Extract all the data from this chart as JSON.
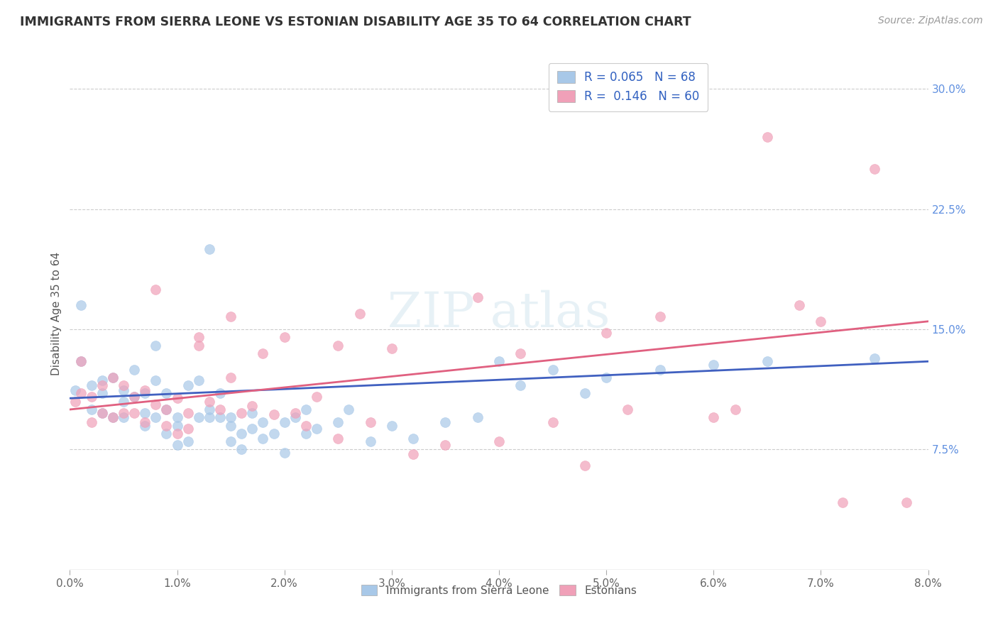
{
  "title": "IMMIGRANTS FROM SIERRA LEONE VS ESTONIAN DISABILITY AGE 35 TO 64 CORRELATION CHART",
  "source_text": "Source: ZipAtlas.com",
  "ylabel": "Disability Age 35 to 64",
  "xlim": [
    0.0,
    0.08
  ],
  "ylim": [
    0.0,
    0.32
  ],
  "xtick_labels": [
    "0.0%",
    "1.0%",
    "2.0%",
    "3.0%",
    "4.0%",
    "5.0%",
    "6.0%",
    "7.0%",
    "8.0%"
  ],
  "xtick_values": [
    0.0,
    0.01,
    0.02,
    0.03,
    0.04,
    0.05,
    0.06,
    0.07,
    0.08
  ],
  "ytick_labels": [
    "7.5%",
    "15.0%",
    "22.5%",
    "30.0%"
  ],
  "ytick_values": [
    0.075,
    0.15,
    0.225,
    0.3
  ],
  "blue_R": 0.065,
  "blue_N": 68,
  "pink_R": 0.146,
  "pink_N": 60,
  "blue_color": "#a8c8e8",
  "pink_color": "#f0a0b8",
  "blue_line_color": "#4060c0",
  "pink_line_color": "#e06080",
  "legend_label_blue": "Immigrants from Sierra Leone",
  "legend_label_pink": "Estonians",
  "watermark": "ZIPatlas",
  "background_color": "#ffffff",
  "blue_scatter_x": [
    0.0005,
    0.001,
    0.001,
    0.002,
    0.002,
    0.003,
    0.003,
    0.003,
    0.004,
    0.004,
    0.005,
    0.005,
    0.005,
    0.006,
    0.006,
    0.007,
    0.007,
    0.007,
    0.008,
    0.008,
    0.008,
    0.009,
    0.009,
    0.009,
    0.01,
    0.01,
    0.01,
    0.011,
    0.011,
    0.012,
    0.012,
    0.013,
    0.013,
    0.013,
    0.014,
    0.014,
    0.015,
    0.015,
    0.015,
    0.016,
    0.016,
    0.017,
    0.017,
    0.018,
    0.018,
    0.019,
    0.02,
    0.02,
    0.021,
    0.022,
    0.022,
    0.023,
    0.025,
    0.026,
    0.028,
    0.03,
    0.032,
    0.035,
    0.038,
    0.04,
    0.042,
    0.045,
    0.048,
    0.05,
    0.055,
    0.06,
    0.065,
    0.075
  ],
  "blue_scatter_y": [
    0.112,
    0.13,
    0.165,
    0.115,
    0.1,
    0.098,
    0.11,
    0.118,
    0.095,
    0.12,
    0.105,
    0.112,
    0.095,
    0.108,
    0.125,
    0.098,
    0.11,
    0.09,
    0.095,
    0.118,
    0.14,
    0.085,
    0.1,
    0.11,
    0.095,
    0.078,
    0.09,
    0.115,
    0.08,
    0.095,
    0.118,
    0.095,
    0.1,
    0.2,
    0.095,
    0.11,
    0.08,
    0.09,
    0.095,
    0.085,
    0.075,
    0.088,
    0.098,
    0.082,
    0.092,
    0.085,
    0.073,
    0.092,
    0.095,
    0.085,
    0.1,
    0.088,
    0.092,
    0.1,
    0.08,
    0.09,
    0.082,
    0.092,
    0.095,
    0.13,
    0.115,
    0.125,
    0.11,
    0.12,
    0.125,
    0.128,
    0.13,
    0.132
  ],
  "pink_scatter_x": [
    0.0005,
    0.001,
    0.001,
    0.002,
    0.002,
    0.003,
    0.003,
    0.004,
    0.004,
    0.005,
    0.005,
    0.006,
    0.006,
    0.007,
    0.007,
    0.008,
    0.008,
    0.009,
    0.009,
    0.01,
    0.01,
    0.011,
    0.011,
    0.012,
    0.012,
    0.013,
    0.014,
    0.015,
    0.015,
    0.016,
    0.017,
    0.018,
    0.019,
    0.02,
    0.021,
    0.022,
    0.023,
    0.025,
    0.025,
    0.027,
    0.028,
    0.03,
    0.032,
    0.035,
    0.038,
    0.04,
    0.042,
    0.045,
    0.048,
    0.05,
    0.052,
    0.055,
    0.06,
    0.062,
    0.065,
    0.068,
    0.07,
    0.072,
    0.075,
    0.078
  ],
  "pink_scatter_y": [
    0.105,
    0.13,
    0.11,
    0.108,
    0.092,
    0.098,
    0.115,
    0.095,
    0.12,
    0.098,
    0.115,
    0.108,
    0.098,
    0.112,
    0.092,
    0.103,
    0.175,
    0.09,
    0.1,
    0.107,
    0.085,
    0.098,
    0.088,
    0.14,
    0.145,
    0.105,
    0.1,
    0.158,
    0.12,
    0.098,
    0.102,
    0.135,
    0.097,
    0.145,
    0.098,
    0.09,
    0.108,
    0.14,
    0.082,
    0.16,
    0.092,
    0.138,
    0.072,
    0.078,
    0.17,
    0.08,
    0.135,
    0.092,
    0.065,
    0.148,
    0.1,
    0.158,
    0.095,
    0.1,
    0.27,
    0.165,
    0.155,
    0.042,
    0.25,
    0.042
  ]
}
